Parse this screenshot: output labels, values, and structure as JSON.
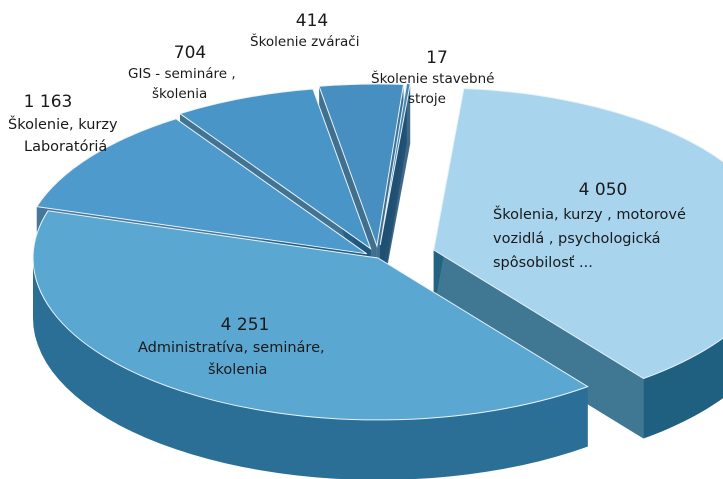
{
  "chart_data": {
    "type": "pie",
    "title": "",
    "slices": [
      {
        "value": 4050,
        "value_label": "4 050",
        "lines": [
          "Školenia, kurzy , motorové",
          "vozidlá , psychologická",
          "spôsobilosť ..."
        ],
        "color": "#a8d4ee",
        "side_color": "#1f5f7f",
        "exploded": true
      },
      {
        "value": 4251,
        "value_label": "4 251",
        "lines": [
          "Administratíva, semináre,",
          "školenia"
        ],
        "color": "#5aa7d2",
        "side_color": "#2b6f97",
        "exploded": false
      },
      {
        "value": 1163,
        "value_label": "1 163",
        "lines": [
          "Školenie, kurzy",
          "Laboratóriá"
        ],
        "color": "#4e9acc",
        "side_color": "#245f87",
        "exploded": false
      },
      {
        "value": 704,
        "value_label": "704",
        "lines": [
          "GIS - semináre ,",
          "školenia"
        ],
        "color": "#4a95c7",
        "side_color": "#225a80",
        "exploded": false
      },
      {
        "value": 414,
        "value_label": "414",
        "lines": [
          "Školenie zvárači"
        ],
        "color": "#468fc0",
        "side_color": "#20567a",
        "exploded": false
      },
      {
        "value": 17,
        "value_label": "17",
        "lines": [
          "Školenie  stavebné",
          "stroje"
        ],
        "color": "#3f86b6",
        "side_color": "#1e4f72",
        "exploded": false
      }
    ]
  }
}
